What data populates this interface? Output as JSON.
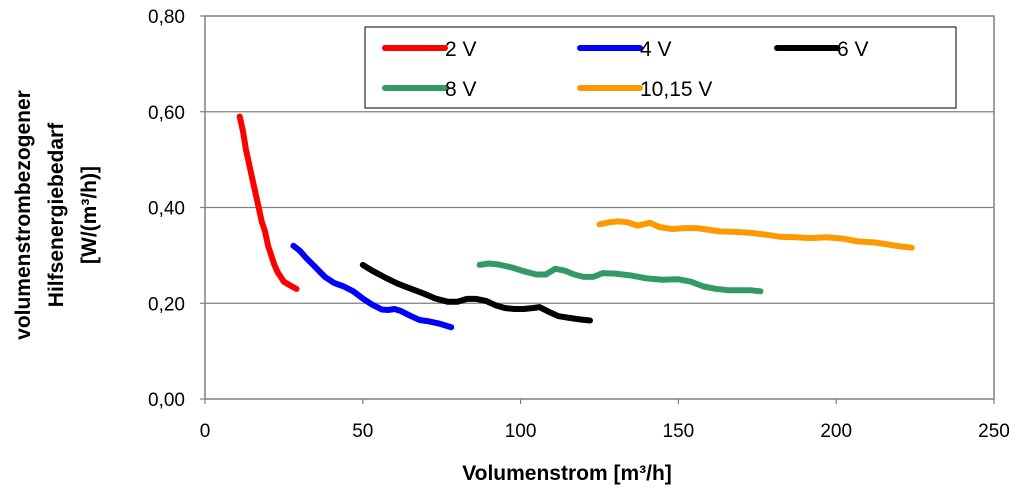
{
  "chart_data": {
    "type": "line",
    "title": "",
    "xlabel": "Volumenstrom [m³/h]",
    "ylabel_lines": [
      "volumenstrombezogener",
      "Hilfsenergiebedarf",
      "[W/(m³/h)]"
    ],
    "xlim": [
      0,
      250
    ],
    "ylim": [
      0,
      0.8
    ],
    "xticks": [
      0,
      50,
      100,
      150,
      200,
      250
    ],
    "xtick_labels": [
      "0",
      "50",
      "100",
      "150",
      "200",
      "250"
    ],
    "yticks": [
      0,
      0.2,
      0.4,
      0.6,
      0.8
    ],
    "ytick_labels": [
      "0,00",
      "0,20",
      "0,40",
      "0,60",
      "0,80"
    ],
    "grid": "horizontal",
    "legend_position": "top",
    "series": [
      {
        "name": "2 V",
        "color": "#ff0000",
        "points": [
          [
            11,
            0.59
          ],
          [
            12,
            0.56
          ],
          [
            13,
            0.52
          ],
          [
            14,
            0.49
          ],
          [
            15,
            0.46
          ],
          [
            16,
            0.43
          ],
          [
            17,
            0.4
          ],
          [
            18,
            0.37
          ],
          [
            19,
            0.35
          ],
          [
            20,
            0.32
          ],
          [
            21,
            0.3
          ],
          [
            22,
            0.28
          ],
          [
            23,
            0.265
          ],
          [
            24,
            0.255
          ],
          [
            25,
            0.245
          ],
          [
            27,
            0.237
          ],
          [
            29,
            0.23
          ]
        ]
      },
      {
        "name": "4 V",
        "color": "#0000ff",
        "points": [
          [
            28,
            0.32
          ],
          [
            30,
            0.31
          ],
          [
            32,
            0.295
          ],
          [
            35,
            0.275
          ],
          [
            38,
            0.255
          ],
          [
            41,
            0.242
          ],
          [
            44,
            0.235
          ],
          [
            47,
            0.225
          ],
          [
            50,
            0.21
          ],
          [
            53,
            0.197
          ],
          [
            56,
            0.187
          ],
          [
            58,
            0.186
          ],
          [
            60,
            0.188
          ],
          [
            62,
            0.184
          ],
          [
            65,
            0.174
          ],
          [
            68,
            0.165
          ],
          [
            71,
            0.162
          ],
          [
            74,
            0.158
          ],
          [
            78,
            0.15
          ]
        ]
      },
      {
        "name": "6 V",
        "color": "#000000",
        "points": [
          [
            50,
            0.28
          ],
          [
            53,
            0.268
          ],
          [
            57,
            0.254
          ],
          [
            61,
            0.241
          ],
          [
            65,
            0.231
          ],
          [
            69,
            0.221
          ],
          [
            73,
            0.21
          ],
          [
            77,
            0.203
          ],
          [
            80,
            0.203
          ],
          [
            83,
            0.209
          ],
          [
            86,
            0.209
          ],
          [
            89,
            0.205
          ],
          [
            92,
            0.196
          ],
          [
            95,
            0.19
          ],
          [
            98,
            0.188
          ],
          [
            101,
            0.188
          ],
          [
            104,
            0.19
          ],
          [
            106,
            0.192
          ],
          [
            109,
            0.182
          ],
          [
            112,
            0.173
          ],
          [
            116,
            0.169
          ],
          [
            119,
            0.166
          ],
          [
            122,
            0.164
          ]
        ]
      },
      {
        "name": "8 V",
        "color": "#339966",
        "points": [
          [
            87,
            0.28
          ],
          [
            90,
            0.283
          ],
          [
            93,
            0.281
          ],
          [
            97,
            0.275
          ],
          [
            101,
            0.267
          ],
          [
            105,
            0.26
          ],
          [
            108,
            0.26
          ],
          [
            111,
            0.272
          ],
          [
            114,
            0.268
          ],
          [
            117,
            0.26
          ],
          [
            120,
            0.255
          ],
          [
            123,
            0.255
          ],
          [
            126,
            0.263
          ],
          [
            130,
            0.262
          ],
          [
            135,
            0.258
          ],
          [
            140,
            0.252
          ],
          [
            145,
            0.249
          ],
          [
            150,
            0.25
          ],
          [
            154,
            0.245
          ],
          [
            158,
            0.235
          ],
          [
            162,
            0.23
          ],
          [
            166,
            0.227
          ],
          [
            170,
            0.227
          ],
          [
            173,
            0.227
          ],
          [
            176,
            0.225
          ]
        ]
      },
      {
        "name": "10,15 V",
        "color": "#ff9900",
        "points": [
          [
            125,
            0.365
          ],
          [
            128,
            0.369
          ],
          [
            131,
            0.371
          ],
          [
            134,
            0.369
          ],
          [
            137,
            0.362
          ],
          [
            141,
            0.368
          ],
          [
            144,
            0.359
          ],
          [
            148,
            0.355
          ],
          [
            152,
            0.357
          ],
          [
            156,
            0.357
          ],
          [
            160,
            0.353
          ],
          [
            163,
            0.35
          ],
          [
            168,
            0.349
          ],
          [
            173,
            0.347
          ],
          [
            178,
            0.343
          ],
          [
            182,
            0.339
          ],
          [
            187,
            0.338
          ],
          [
            192,
            0.336
          ],
          [
            197,
            0.338
          ],
          [
            202,
            0.335
          ],
          [
            207,
            0.329
          ],
          [
            212,
            0.327
          ],
          [
            217,
            0.322
          ],
          [
            220,
            0.319
          ],
          [
            224,
            0.316
          ]
        ]
      }
    ]
  }
}
